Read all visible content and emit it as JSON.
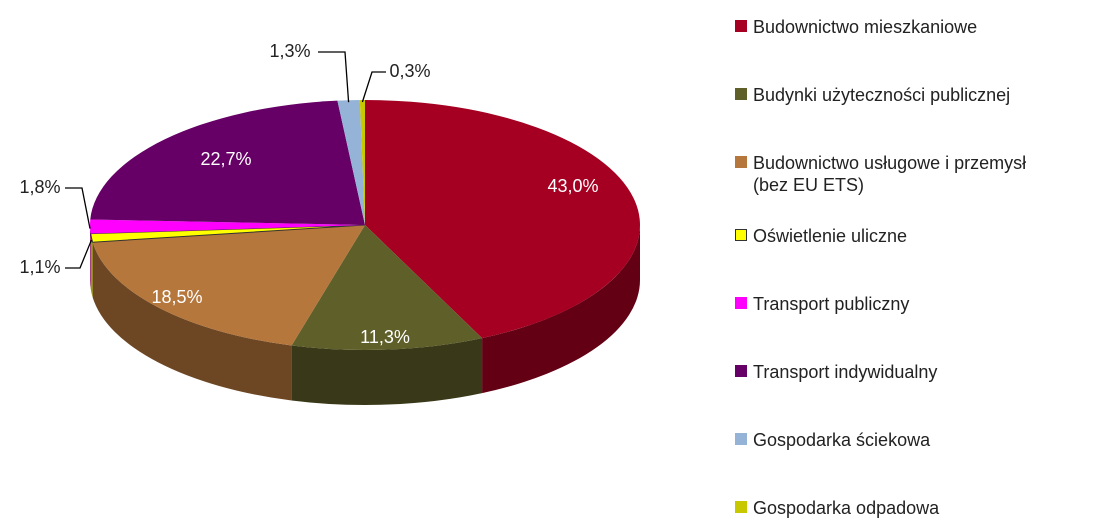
{
  "chart_data": {
    "type": "pie3d",
    "categories": [
      "Budownictwo mieszkaniowe",
      "Budynki użyteczności publicznej",
      "Budownictwo usługowe i przemysł (bez EU ETS)",
      "Oświetlenie uliczne",
      "Transport publiczny",
      "Transport indywidualny",
      "Gospodarka ściekowa",
      "Gospodarka odpadowa"
    ],
    "values": [
      43.0,
      11.3,
      18.5,
      1.1,
      1.8,
      22.7,
      1.3,
      0.3
    ],
    "value_labels": [
      "43,0%",
      "11,3%",
      "18,5%",
      "1,1%",
      "1,8%",
      "22,7%",
      "1,3%",
      "0,3%"
    ],
    "colors": [
      "#a50021",
      "#5f5f2a",
      "#b5773c",
      "#ffff00",
      "#ff00ff",
      "#660066",
      "#95b3d7",
      "#c8c800"
    ],
    "legend": "right"
  }
}
